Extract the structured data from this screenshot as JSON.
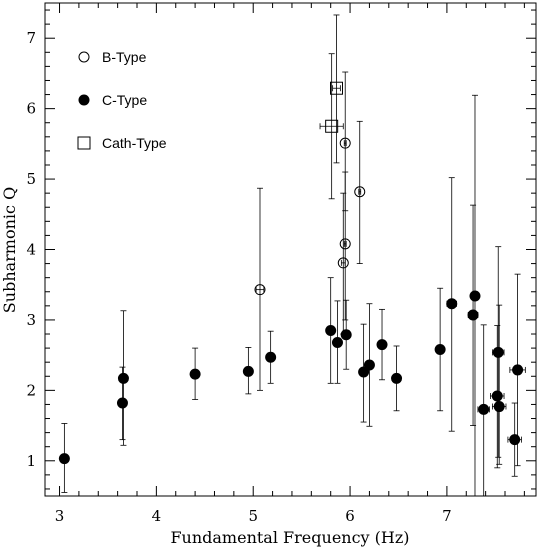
{
  "chart_data": {
    "type": "scatter",
    "title": "",
    "xlabel": "Fundamental Frequency (Hz)",
    "ylabel": "Subharmonic Q",
    "xlim": [
      2.85,
      7.92
    ],
    "ylim": [
      0.5,
      7.5
    ],
    "xticks": [
      3,
      4,
      5,
      6,
      7
    ],
    "yticks": [
      1,
      2,
      3,
      4,
      5,
      6,
      7
    ],
    "grid": false,
    "legend_position": "top-left",
    "series": [
      {
        "name": "B-Type",
        "marker": "open-circle",
        "points": [
          {
            "x": 5.07,
            "y": 3.43,
            "ylo": 2.0,
            "yhi": 4.87,
            "xerr": 0.04
          },
          {
            "x": 5.95,
            "y": 5.51,
            "ylo": 4.55,
            "yhi": 6.52,
            "xerr": 0.01
          },
          {
            "x": 6.1,
            "y": 4.82,
            "ylo": 3.8,
            "yhi": 5.82,
            "xerr": 0.01
          },
          {
            "x": 5.95,
            "y": 4.08,
            "ylo": 3.0,
            "yhi": 5.1,
            "xerr": 0.01
          },
          {
            "x": 5.93,
            "y": 3.81,
            "ylo": 2.8,
            "yhi": 4.8,
            "xerr": 0.02
          }
        ]
      },
      {
        "name": "C-Type",
        "marker": "filled-circle",
        "points": [
          {
            "x": 3.05,
            "y": 1.03,
            "ylo": 0.55,
            "yhi": 1.53,
            "xerr": 0
          },
          {
            "x": 3.65,
            "y": 1.82,
            "ylo": 1.3,
            "yhi": 2.33,
            "xerr": 0
          },
          {
            "x": 3.66,
            "y": 2.17,
            "ylo": 1.22,
            "yhi": 3.13,
            "xerr": 0
          },
          {
            "x": 4.4,
            "y": 2.23,
            "ylo": 1.87,
            "yhi": 2.6,
            "xerr": 0
          },
          {
            "x": 4.95,
            "y": 2.27,
            "ylo": 1.95,
            "yhi": 2.61,
            "xerr": 0
          },
          {
            "x": 5.18,
            "y": 2.47,
            "ylo": 2.1,
            "yhi": 2.84,
            "xerr": 0
          },
          {
            "x": 5.8,
            "y": 2.85,
            "ylo": 2.1,
            "yhi": 3.6,
            "xerr": 0
          },
          {
            "x": 5.87,
            "y": 2.68,
            "ylo": 2.1,
            "yhi": 3.27,
            "xerr": 0
          },
          {
            "x": 5.96,
            "y": 2.79,
            "ylo": 2.3,
            "yhi": 3.28,
            "xerr": 0
          },
          {
            "x": 6.14,
            "y": 2.26,
            "ylo": 1.55,
            "yhi": 2.94,
            "xerr": 0
          },
          {
            "x": 6.2,
            "y": 2.36,
            "ylo": 1.49,
            "yhi": 3.23,
            "xerr": 0
          },
          {
            "x": 6.33,
            "y": 2.65,
            "ylo": 2.15,
            "yhi": 3.15,
            "xerr": 0
          },
          {
            "x": 6.48,
            "y": 2.17,
            "ylo": 1.71,
            "yhi": 2.63,
            "xerr": 0
          },
          {
            "x": 6.93,
            "y": 2.58,
            "ylo": 1.71,
            "yhi": 3.45,
            "xerr": 0
          },
          {
            "x": 7.05,
            "y": 3.23,
            "ylo": 1.42,
            "yhi": 5.02,
            "xerr": 0.05
          },
          {
            "x": 7.27,
            "y": 3.07,
            "ylo": 1.5,
            "yhi": 4.63,
            "xerr": 0.05
          },
          {
            "x": 7.29,
            "y": 3.34,
            "ylo": 0.5,
            "yhi": 6.19,
            "xerr": 0.04
          },
          {
            "x": 7.38,
            "y": 1.73,
            "ylo": 0.5,
            "yhi": 2.93,
            "xerr": 0.06
          },
          {
            "x": 7.53,
            "y": 2.54,
            "ylo": 1.05,
            "yhi": 4.04,
            "xerr": 0.06
          },
          {
            "x": 7.52,
            "y": 1.92,
            "ylo": 0.9,
            "yhi": 2.92,
            "xerr": 0.07
          },
          {
            "x": 7.54,
            "y": 1.77,
            "ylo": 0.95,
            "yhi": 3.21,
            "xerr": 0.07
          },
          {
            "x": 7.7,
            "y": 1.3,
            "ylo": 0.78,
            "yhi": 1.82,
            "xerr": 0.07
          },
          {
            "x": 7.73,
            "y": 2.29,
            "ylo": 0.93,
            "yhi": 3.65,
            "xerr": 0.08
          }
        ]
      },
      {
        "name": "Cath-Type",
        "marker": "open-square",
        "points": [
          {
            "x": 5.86,
            "y": 6.29,
            "ylo": 5.23,
            "yhi": 7.33,
            "xerr": 0.04
          },
          {
            "x": 5.81,
            "y": 5.75,
            "ylo": 4.72,
            "yhi": 6.78,
            "xerr": 0.12
          }
        ]
      }
    ]
  }
}
